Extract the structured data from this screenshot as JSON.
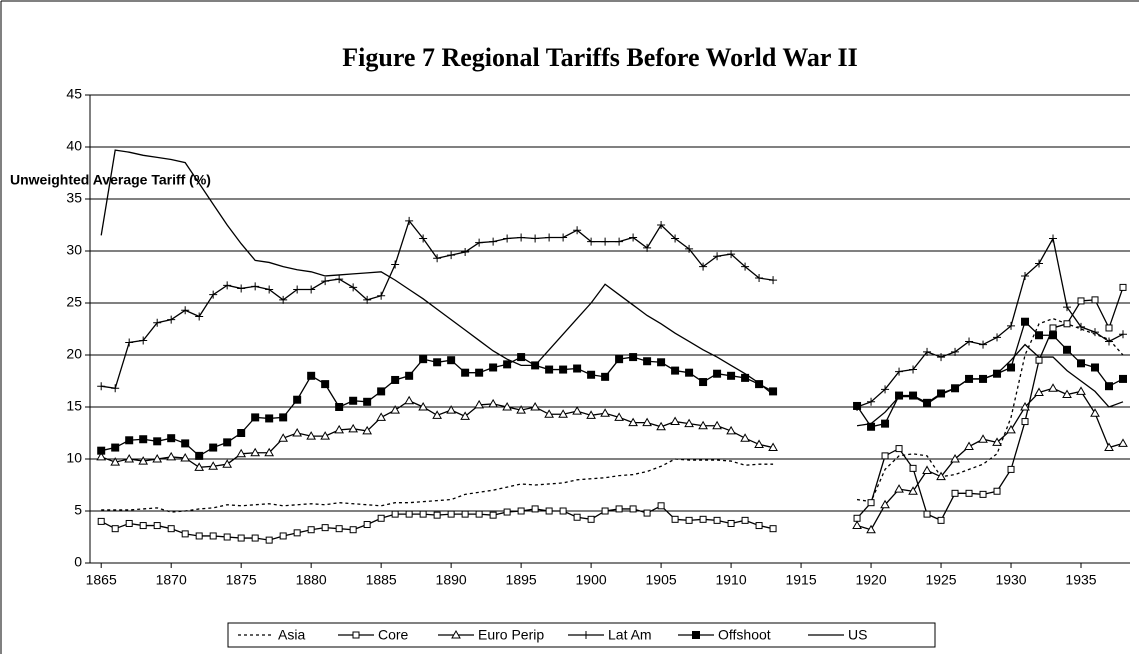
{
  "chart_data": {
    "type": "line",
    "title": "Figure 7 Regional Tariffs Before World War II",
    "y_label": "Unweighted Average Tariff (%)",
    "x": [
      1865,
      1866,
      1867,
      1868,
      1869,
      1870,
      1871,
      1872,
      1873,
      1874,
      1875,
      1876,
      1877,
      1878,
      1879,
      1880,
      1881,
      1882,
      1883,
      1884,
      1885,
      1886,
      1887,
      1888,
      1889,
      1890,
      1891,
      1892,
      1893,
      1894,
      1895,
      1896,
      1897,
      1898,
      1899,
      1900,
      1901,
      1902,
      1903,
      1904,
      1905,
      1906,
      1907,
      1908,
      1909,
      1910,
      1911,
      1912,
      1913,
      1914,
      1915,
      1916,
      1917,
      1918,
      1919,
      1920,
      1921,
      1922,
      1923,
      1924,
      1925,
      1926,
      1927,
      1928,
      1929,
      1930,
      1931,
      1932,
      1933,
      1934,
      1935,
      1936,
      1937,
      1938
    ],
    "xlim": [
      1864.2,
      1938.5
    ],
    "xticks": [
      1865,
      1870,
      1875,
      1880,
      1885,
      1890,
      1895,
      1900,
      1905,
      1910,
      1915,
      1920,
      1925,
      1930,
      1935
    ],
    "ylim": [
      0,
      45
    ],
    "yticks": [
      0,
      5,
      10,
      15,
      20,
      25,
      30,
      35,
      40,
      45
    ],
    "grid": true,
    "legend": "bottom",
    "series": [
      {
        "name": "Asia",
        "color": "#000000",
        "dash": "dotted",
        "marker": "none",
        "values": [
          5.1,
          5.1,
          5.1,
          5.2,
          5.3,
          4.9,
          5.0,
          5.2,
          5.3,
          5.6,
          5.5,
          5.6,
          5.7,
          5.5,
          5.6,
          5.7,
          5.6,
          5.8,
          5.7,
          5.6,
          5.5,
          5.8,
          5.8,
          5.9,
          6.0,
          6.1,
          6.6,
          6.8,
          7.0,
          7.3,
          7.6,
          7.5,
          7.6,
          7.7,
          8.0,
          8.1,
          8.2,
          8.4,
          8.5,
          8.8,
          9.3,
          10.0,
          9.9,
          9.9,
          9.9,
          9.8,
          9.4,
          9.5,
          9.5,
          null,
          null,
          null,
          null,
          null,
          6.1,
          5.9,
          9.0,
          10.3,
          10.5,
          10.3,
          8.3,
          8.5,
          9.0,
          9.5,
          10.5,
          14.0,
          20.0,
          23.0,
          23.5,
          23.0,
          22.5,
          22.0,
          21.5,
          20.0
        ]
      },
      {
        "name": "Core",
        "color": "#000000",
        "dash": "solid",
        "marker": "square-open",
        "values": [
          4.0,
          3.3,
          3.8,
          3.6,
          3.6,
          3.3,
          2.8,
          2.6,
          2.6,
          2.5,
          2.4,
          2.4,
          2.2,
          2.6,
          2.9,
          3.2,
          3.4,
          3.3,
          3.2,
          3.7,
          4.3,
          4.7,
          4.7,
          4.7,
          4.6,
          4.7,
          4.7,
          4.7,
          4.6,
          4.9,
          5.0,
          5.2,
          5.0,
          5.0,
          4.4,
          4.2,
          5.0,
          5.2,
          5.2,
          4.8,
          5.5,
          4.2,
          4.1,
          4.2,
          4.1,
          3.8,
          4.1,
          3.6,
          3.3,
          null,
          null,
          null,
          null,
          null,
          4.3,
          5.8,
          10.3,
          11.0,
          9.1,
          4.7,
          4.1,
          6.7,
          6.7,
          6.6,
          6.9,
          9.0,
          13.6,
          19.5,
          22.6,
          23.0,
          25.2,
          25.3,
          22.6,
          26.5
        ]
      },
      {
        "name": "Euro Perip",
        "color": "#000000",
        "dash": "solid",
        "marker": "triangle-open",
        "values": [
          10.2,
          9.7,
          10.0,
          9.8,
          10.0,
          10.2,
          10.1,
          9.2,
          9.3,
          9.5,
          10.5,
          10.6,
          10.6,
          12.0,
          12.5,
          12.2,
          12.2,
          12.8,
          12.9,
          12.7,
          14.0,
          14.7,
          15.6,
          15.0,
          14.2,
          14.7,
          14.1,
          15.2,
          15.3,
          15.0,
          14.7,
          15.0,
          14.3,
          14.3,
          14.6,
          14.2,
          14.4,
          14.0,
          13.5,
          13.5,
          13.1,
          13.6,
          13.4,
          13.2,
          13.2,
          12.7,
          12.0,
          11.4,
          11.1,
          null,
          null,
          null,
          null,
          null,
          3.6,
          3.2,
          5.6,
          7.1,
          6.9,
          8.9,
          8.3,
          10.0,
          11.2,
          11.9,
          11.6,
          12.8,
          15.0,
          16.4,
          16.8,
          16.2,
          16.5,
          14.4,
          11.1,
          11.5
        ]
      },
      {
        "name": "Lat Am",
        "color": "#000000",
        "dash": "solid",
        "marker": "plus",
        "values": [
          17.0,
          16.8,
          21.2,
          21.4,
          23.1,
          23.4,
          24.3,
          23.7,
          25.8,
          26.7,
          26.4,
          26.6,
          26.3,
          25.3,
          26.3,
          26.3,
          27.1,
          27.3,
          26.5,
          25.3,
          25.7,
          28.7,
          32.9,
          31.2,
          29.3,
          29.6,
          29.9,
          30.8,
          30.9,
          31.2,
          31.3,
          31.2,
          31.3,
          31.3,
          32.0,
          30.9,
          30.9,
          30.9,
          31.3,
          30.3,
          32.5,
          31.2,
          30.2,
          28.5,
          29.5,
          29.7,
          28.5,
          27.4,
          27.2,
          null,
          null,
          null,
          null,
          null,
          15.0,
          15.5,
          16.7,
          18.4,
          18.6,
          20.3,
          19.8,
          20.3,
          21.3,
          21.0,
          21.7,
          22.8,
          27.6,
          28.8,
          31.2,
          24.6,
          22.7,
          22.2,
          21.3,
          22.0
        ]
      },
      {
        "name": "Offshoot",
        "color": "#000000",
        "dash": "solid",
        "marker": "square-filled",
        "values": [
          10.8,
          11.1,
          11.8,
          11.9,
          11.7,
          12.0,
          11.5,
          10.3,
          11.1,
          11.6,
          12.5,
          14.0,
          13.9,
          14.0,
          15.7,
          18.0,
          17.2,
          15.0,
          15.6,
          15.5,
          16.5,
          17.6,
          18.0,
          19.6,
          19.3,
          19.5,
          18.3,
          18.3,
          18.8,
          19.1,
          19.8,
          19.0,
          18.6,
          18.6,
          18.7,
          18.1,
          17.9,
          19.6,
          19.8,
          19.4,
          19.3,
          18.5,
          18.3,
          17.4,
          18.2,
          18.0,
          17.8,
          17.2,
          16.5,
          null,
          null,
          null,
          null,
          null,
          15.1,
          13.1,
          13.4,
          16.1,
          16.1,
          15.4,
          16.3,
          16.8,
          17.7,
          17.7,
          18.2,
          18.8,
          23.2,
          21.9,
          21.9,
          20.5,
          19.2,
          18.8,
          17.0,
          17.7
        ]
      },
      {
        "name": "US",
        "color": "#000000",
        "dash": "solid",
        "marker": "none",
        "values": [
          31.5,
          39.7,
          39.5,
          39.2,
          39.0,
          38.8,
          38.5,
          36.5,
          34.5,
          32.5,
          30.7,
          29.1,
          28.9,
          28.5,
          28.2,
          28.0,
          27.6,
          27.7,
          27.8,
          27.9,
          28.0,
          27.2,
          26.3,
          25.4,
          24.4,
          23.4,
          22.4,
          21.4,
          20.4,
          19.6,
          19.0,
          19.0,
          20.5,
          22.0,
          23.5,
          25.0,
          26.8,
          25.8,
          24.8,
          23.8,
          23.0,
          22.1,
          21.3,
          20.5,
          19.8,
          19.0,
          18.2,
          17.3,
          16.2,
          null,
          null,
          null,
          null,
          null,
          13.2,
          13.4,
          14.5,
          16.0,
          16.0,
          15.3,
          16.2,
          16.8,
          17.7,
          17.7,
          18.2,
          19.5,
          21.0,
          19.8,
          19.8,
          18.5,
          17.5,
          16.5,
          15.0,
          15.5
        ]
      }
    ]
  }
}
